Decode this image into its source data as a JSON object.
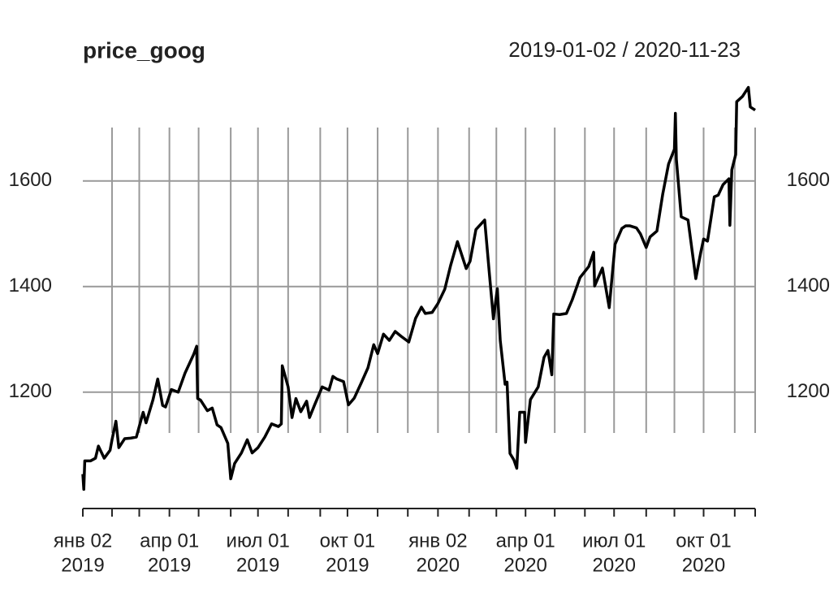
{
  "chart_data": {
    "type": "line",
    "title": "price_goog",
    "subtitle": "2019-01-02 / 2020-11-23",
    "xlim": [
      "2019-01-02",
      "2020-11-23"
    ],
    "ylim": [
      989,
      1781
    ],
    "yticks": [
      1200,
      1400,
      1600
    ],
    "grid": true,
    "xticks": [
      {
        "value": "2019-01-02",
        "label": "янв 02",
        "year": "2019"
      },
      "2019-02-01",
      "2019-03-01",
      {
        "value": "2019-04-01",
        "label": "апр 01",
        "year": "2019"
      },
      "2019-05-01",
      "2019-06-03",
      {
        "value": "2019-07-01",
        "label": "июл 01",
        "year": "2019"
      },
      "2019-08-01",
      "2019-09-03",
      {
        "value": "2019-10-01",
        "label": "окт 01",
        "year": "2019"
      },
      "2019-11-01",
      "2019-12-02",
      {
        "value": "2020-01-02",
        "label": "янв 02",
        "year": "2020"
      },
      "2020-02-03",
      "2020-03-02",
      {
        "value": "2020-04-01",
        "label": "апр 01",
        "year": "2020"
      },
      "2020-05-01",
      "2020-06-01",
      {
        "value": "2020-07-01",
        "label": "июл 01",
        "year": "2020"
      },
      "2020-08-03",
      "2020-09-01",
      {
        "value": "2020-10-01",
        "label": "окт 01",
        "year": "2020"
      },
      "2020-11-02",
      "2020-11-23"
    ],
    "series": [
      {
        "name": "price_goog",
        "color": "#000000",
        "x": [
          "2019-01-02",
          "2019-01-03",
          "2019-01-04",
          "2019-01-10",
          "2019-01-15",
          "2019-01-18",
          "2019-01-24",
          "2019-01-30",
          "2019-02-01",
          "2019-02-05",
          "2019-02-08",
          "2019-02-14",
          "2019-02-20",
          "2019-02-26",
          "2019-03-05",
          "2019-03-08",
          "2019-03-15",
          "2019-03-20",
          "2019-03-25",
          "2019-03-28",
          "2019-04-03",
          "2019-04-10",
          "2019-04-17",
          "2019-04-26",
          "2019-04-29",
          "2019-04-30",
          "2019-05-03",
          "2019-05-10",
          "2019-05-15",
          "2019-05-20",
          "2019-05-24",
          "2019-05-31",
          "2019-06-03",
          "2019-06-07",
          "2019-06-14",
          "2019-06-20",
          "2019-06-25",
          "2019-07-01",
          "2019-07-08",
          "2019-07-15",
          "2019-07-22",
          "2019-07-25",
          "2019-07-26",
          "2019-08-01",
          "2019-08-05",
          "2019-08-09",
          "2019-08-14",
          "2019-08-20",
          "2019-08-23",
          "2019-08-28",
          "2019-09-05",
          "2019-09-12",
          "2019-09-16",
          "2019-09-20",
          "2019-09-27",
          "2019-10-02",
          "2019-10-08",
          "2019-10-15",
          "2019-10-22",
          "2019-10-28",
          "2019-11-01",
          "2019-11-07",
          "2019-11-13",
          "2019-11-19",
          "2019-11-25",
          "2019-12-03",
          "2019-12-10",
          "2019-12-16",
          "2019-12-20",
          "2019-12-27",
          "2020-01-02",
          "2020-01-09",
          "2020-01-15",
          "2020-01-22",
          "2020-01-28",
          "2020-01-31",
          "2020-02-04",
          "2020-02-10",
          "2020-02-19",
          "2020-02-24",
          "2020-02-28",
          "2020-03-03",
          "2020-03-06",
          "2020-03-11",
          "2020-03-13",
          "2020-03-16",
          "2020-03-20",
          "2020-03-23",
          "2020-03-26",
          "2020-03-31",
          "2020-04-01",
          "2020-04-06",
          "2020-04-14",
          "2020-04-20",
          "2020-04-24",
          "2020-04-28",
          "2020-04-30",
          "2020-05-06",
          "2020-05-13",
          "2020-05-19",
          "2020-05-27",
          "2020-06-05",
          "2020-06-10",
          "2020-06-11",
          "2020-06-19",
          "2020-06-26",
          "2020-07-02",
          "2020-07-09",
          "2020-07-13",
          "2020-07-17",
          "2020-07-24",
          "2020-07-28",
          "2020-08-03",
          "2020-08-07",
          "2020-08-14",
          "2020-08-20",
          "2020-08-26",
          "2020-09-01",
          "2020-09-02",
          "2020-09-03",
          "2020-09-08",
          "2020-09-15",
          "2020-09-23",
          "2020-09-28",
          "2020-10-01",
          "2020-10-05",
          "2020-10-12",
          "2020-10-16",
          "2020-10-21",
          "2020-10-27",
          "2020-10-28",
          "2020-10-30",
          "2020-11-03",
          "2020-11-04",
          "2020-11-10",
          "2020-11-16",
          "2020-11-18",
          "2020-11-23"
        ],
        "values": [
          1045,
          1016,
          1070,
          1070,
          1075,
          1098,
          1075,
          1090,
          1110,
          1145,
          1095,
          1112,
          1113,
          1115,
          1162,
          1142,
          1185,
          1225,
          1175,
          1172,
          1205,
          1200,
          1236,
          1272,
          1287,
          1188,
          1185,
          1165,
          1170,
          1138,
          1133,
          1103,
          1036,
          1065,
          1085,
          1110,
          1085,
          1095,
          1115,
          1140,
          1135,
          1140,
          1250,
          1210,
          1152,
          1188,
          1163,
          1183,
          1152,
          1175,
          1210,
          1204,
          1230,
          1225,
          1220,
          1176,
          1189,
          1217,
          1246,
          1290,
          1273,
          1310,
          1298,
          1315,
          1306,
          1295,
          1340,
          1361,
          1349,
          1351,
          1368,
          1395,
          1440,
          1485,
          1451,
          1434,
          1448,
          1508,
          1526,
          1421,
          1339,
          1396,
          1298,
          1215,
          1219,
          1084,
          1072,
          1056,
          1162,
          1162,
          1105,
          1186,
          1210,
          1266,
          1279,
          1233,
          1348,
          1347,
          1349,
          1375,
          1417,
          1438,
          1465,
          1401,
          1435,
          1360,
          1480,
          1510,
          1515,
          1515,
          1511,
          1500,
          1474,
          1494,
          1505,
          1575,
          1632,
          1660,
          1728,
          1641,
          1532,
          1526,
          1415,
          1464,
          1490,
          1486,
          1570,
          1573,
          1593,
          1604,
          1516,
          1621,
          1650,
          1750,
          1760,
          1777,
          1740,
          1734
        ]
      }
    ]
  }
}
